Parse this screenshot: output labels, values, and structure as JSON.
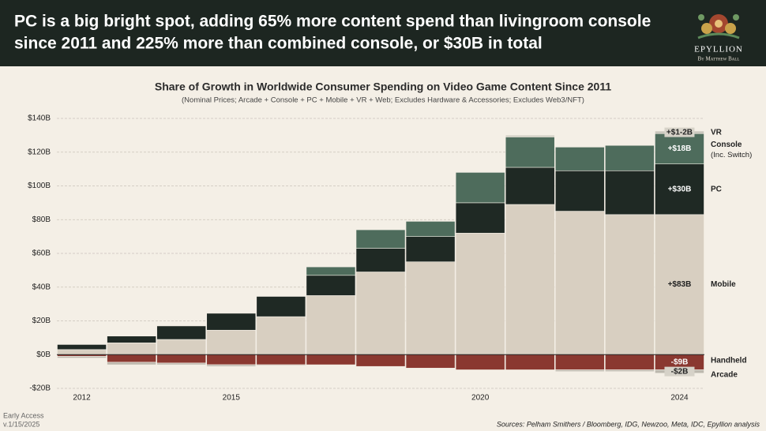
{
  "header": {
    "title_lines": [
      "PC is a big bright spot, adding 65% more content spend than livingroom console",
      "since 2011 and 225% more than combined console, or $30B in total"
    ]
  },
  "logo": {
    "name": "EPYLLION",
    "byline": "By Matthew Ball"
  },
  "chart_data": {
    "type": "stacked-bar",
    "title": "Share of Growth in Worldwide Consumer Spending on Video Game Content Since 2011",
    "subtitle": "(Nominal Prices; Arcade + Console + PC + Mobile + VR + Web; Excludes Hardware & Accessories; Excludes Web3/NFT)",
    "categories": [
      "2012",
      null,
      null,
      "2015",
      null,
      null,
      null,
      null,
      "2020",
      null,
      null,
      null,
      "2024"
    ],
    "series": [
      {
        "name": "Mobile",
        "color": "#d8cfc1",
        "values": [
          3,
          7,
          9,
          14.5,
          22.5,
          35,
          49,
          55,
          72,
          89,
          85,
          83,
          83
        ],
        "value_labels": [
          null,
          null,
          null,
          null,
          null,
          null,
          null,
          null,
          null,
          null,
          null,
          null,
          "+$83B"
        ]
      },
      {
        "name": "PC",
        "color": "#1f2924",
        "values": [
          3,
          4,
          8,
          10,
          12,
          12,
          14,
          15,
          18,
          22,
          24,
          26,
          30
        ],
        "value_labels": [
          null,
          null,
          null,
          null,
          null,
          null,
          null,
          null,
          null,
          null,
          null,
          null,
          "+$30B"
        ]
      },
      {
        "name": "Console",
        "note": "(Inc. Switch)",
        "color": "#4e6c5c",
        "values": [
          0,
          0,
          0,
          0,
          0,
          5,
          11,
          9,
          18,
          18,
          14,
          15,
          18
        ],
        "value_labels": [
          null,
          null,
          null,
          null,
          null,
          null,
          null,
          null,
          null,
          null,
          null,
          null,
          "+$18B"
        ]
      },
      {
        "name": "VR",
        "color": "#c9c7bd",
        "values": [
          0,
          0,
          0,
          0,
          0,
          0,
          0,
          0,
          0,
          1,
          0,
          0,
          1.5
        ],
        "value_labels": [
          null,
          null,
          null,
          null,
          null,
          null,
          null,
          null,
          null,
          null,
          null,
          null,
          "+$1-2B"
        ]
      },
      {
        "name": "Handheld",
        "color": "#8a3830",
        "values": [
          -1,
          -4.5,
          -5,
          -6,
          -6,
          -6,
          -7,
          -8,
          -9,
          -9,
          -9,
          -9,
          -9
        ],
        "value_labels": [
          null,
          null,
          null,
          null,
          null,
          null,
          null,
          null,
          null,
          null,
          null,
          null,
          "-$9B"
        ]
      },
      {
        "name": "Arcade",
        "color": "#bdb8ae",
        "values": [
          -1,
          -1.5,
          -1,
          -1,
          -0.5,
          0,
          0,
          0,
          0,
          0,
          -1,
          -1,
          -2
        ],
        "value_labels": [
          null,
          null,
          null,
          null,
          null,
          null,
          null,
          null,
          null,
          null,
          null,
          null,
          "-$2B"
        ]
      }
    ],
    "ylim": [
      -20,
      140
    ],
    "yticks": [
      {
        "value": -20,
        "label": "-$20B"
      },
      {
        "value": 0,
        "label": "$0B"
      },
      {
        "value": 20,
        "label": "$20B"
      },
      {
        "value": 40,
        "label": "$40B"
      },
      {
        "value": 60,
        "label": "$60B"
      },
      {
        "value": 80,
        "label": "$80B"
      },
      {
        "value": 100,
        "label": "$100B"
      },
      {
        "value": 120,
        "label": "$120B"
      },
      {
        "value": 140,
        "label": "$140B"
      }
    ],
    "grid": true
  },
  "footer": {
    "status": "Early Access",
    "version": "v.1/15/2025",
    "sources": "Sources: Pelham Smithers / Bloomberg, IDG, Newzoo, Meta, IDC, Epyllion analysis"
  }
}
